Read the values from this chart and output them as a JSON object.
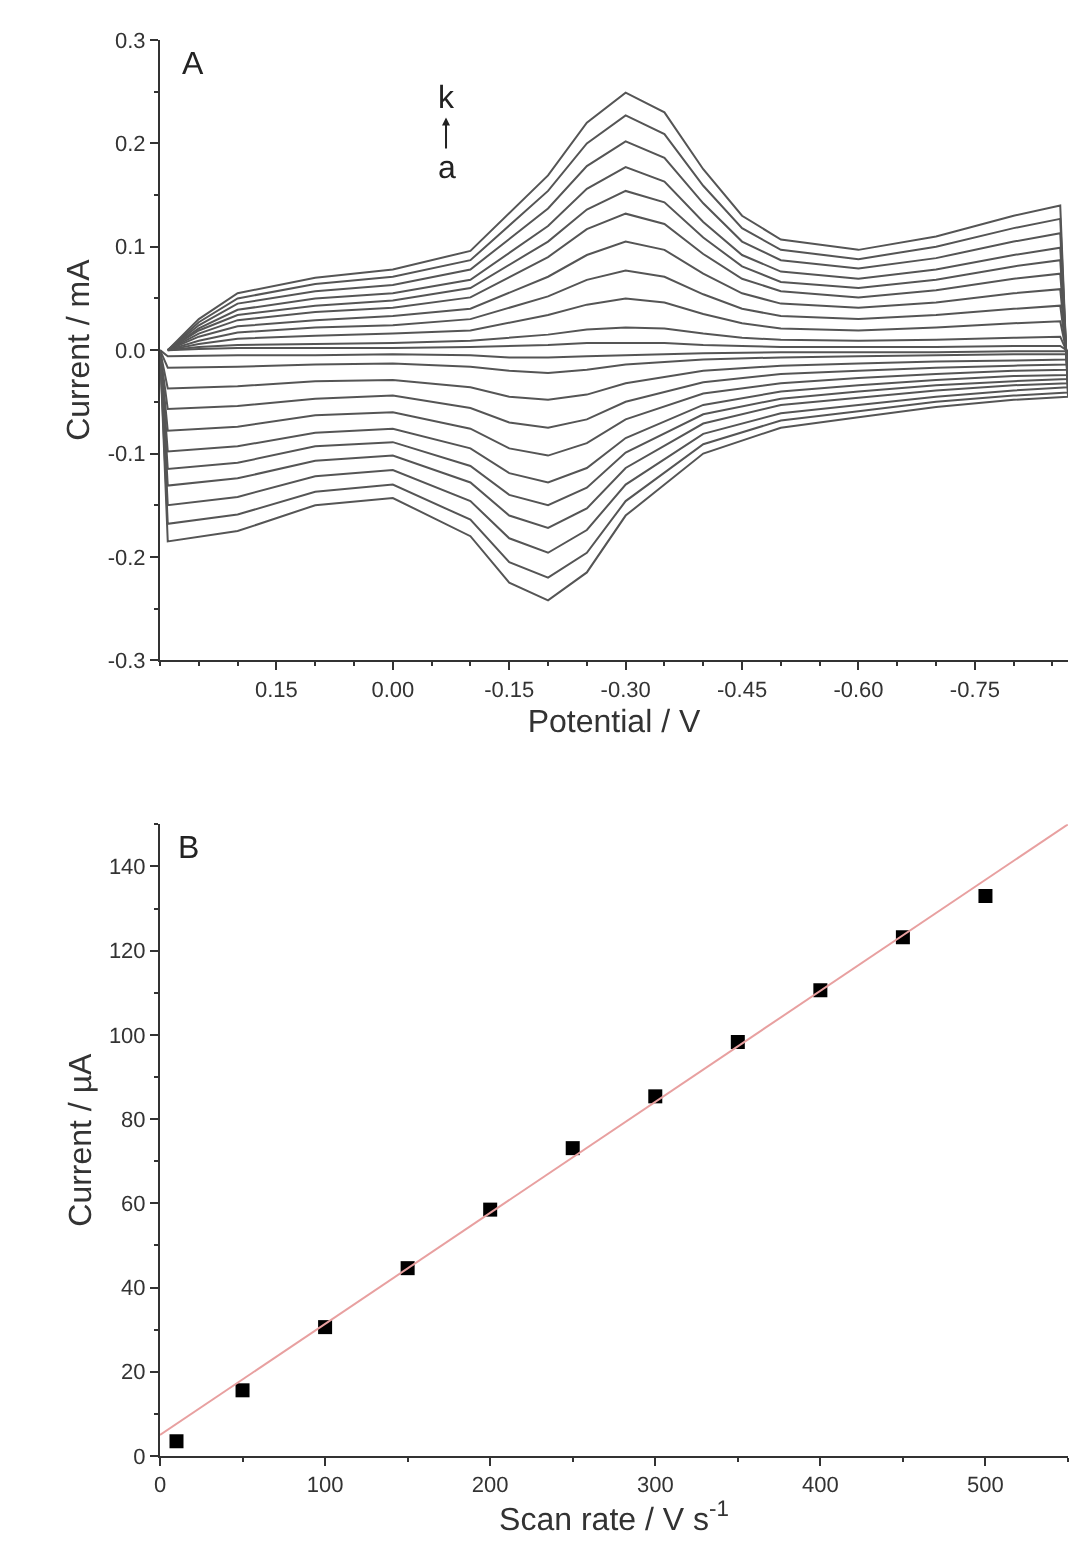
{
  "chart_data": [
    {
      "type": "line",
      "xlabel": "Potential / V",
      "ylabel": "Current / mA",
      "annotations": [
        "A",
        "k",
        "a"
      ],
      "x": [
        0.29,
        0.25,
        0.2,
        0.1,
        0.0,
        -0.1,
        -0.2,
        -0.25,
        -0.3,
        -0.35,
        -0.4,
        -0.45,
        -0.5,
        -0.6,
        -0.7,
        -0.8,
        -0.86,
        -0.87,
        -0.8,
        -0.7,
        -0.6,
        -0.5,
        -0.4,
        -0.3,
        -0.25,
        -0.2,
        -0.15,
        -0.1,
        0.0,
        0.1,
        0.2,
        0.29,
        0.3
      ],
      "series": [
        {
          "color": "#555555",
          "values": [
            0.0,
            0.001,
            0.002,
            0.002,
            0.002,
            0.003,
            0.005,
            0.007,
            0.007,
            0.007,
            0.005,
            0.004,
            0.003,
            0.003,
            0.003,
            0.004,
            0.004,
            -0.001,
            -0.001,
            -0.002,
            -0.002,
            -0.002,
            -0.003,
            -0.005,
            -0.006,
            -0.007,
            -0.007,
            -0.005,
            -0.004,
            -0.005,
            -0.005,
            -0.006,
            0.0
          ]
        },
        {
          "color": "#555555",
          "values": [
            0.0,
            0.003,
            0.005,
            0.006,
            0.007,
            0.009,
            0.015,
            0.02,
            0.022,
            0.021,
            0.016,
            0.012,
            0.01,
            0.009,
            0.01,
            0.012,
            0.013,
            -0.004,
            -0.004,
            -0.005,
            -0.006,
            -0.007,
            -0.009,
            -0.014,
            -0.019,
            -0.022,
            -0.02,
            -0.016,
            -0.013,
            -0.014,
            -0.016,
            -0.017,
            0.0
          ]
        },
        {
          "color": "#555555",
          "values": [
            0.0,
            0.006,
            0.011,
            0.014,
            0.016,
            0.019,
            0.034,
            0.044,
            0.05,
            0.046,
            0.035,
            0.026,
            0.021,
            0.019,
            0.022,
            0.026,
            0.028,
            -0.009,
            -0.01,
            -0.011,
            -0.013,
            -0.015,
            -0.02,
            -0.032,
            -0.043,
            -0.048,
            -0.045,
            -0.036,
            -0.029,
            -0.03,
            -0.035,
            -0.037,
            0.0
          ]
        },
        {
          "color": "#555555",
          "values": [
            0.0,
            0.009,
            0.017,
            0.022,
            0.024,
            0.03,
            0.052,
            0.068,
            0.077,
            0.071,
            0.054,
            0.04,
            0.033,
            0.03,
            0.034,
            0.04,
            0.043,
            -0.014,
            -0.015,
            -0.017,
            -0.02,
            -0.023,
            -0.031,
            -0.05,
            -0.067,
            -0.075,
            -0.07,
            -0.056,
            -0.044,
            -0.047,
            -0.054,
            -0.057,
            0.0
          ]
        },
        {
          "color": "#555555",
          "values": [
            0.0,
            0.013,
            0.023,
            0.029,
            0.033,
            0.04,
            0.071,
            0.092,
            0.105,
            0.097,
            0.074,
            0.055,
            0.045,
            0.041,
            0.046,
            0.055,
            0.059,
            -0.019,
            -0.02,
            -0.023,
            -0.027,
            -0.032,
            -0.042,
            -0.067,
            -0.09,
            -0.102,
            -0.095,
            -0.076,
            -0.06,
            -0.063,
            -0.074,
            -0.078,
            0.0
          ]
        },
        {
          "color": "#555555",
          "values": [
            0.0,
            0.016,
            0.029,
            0.037,
            0.041,
            0.051,
            0.09,
            0.117,
            0.132,
            0.122,
            0.093,
            0.069,
            0.057,
            0.051,
            0.058,
            0.069,
            0.074,
            -0.024,
            -0.025,
            -0.029,
            -0.034,
            -0.04,
            -0.053,
            -0.085,
            -0.114,
            -0.128,
            -0.119,
            -0.095,
            -0.076,
            -0.08,
            -0.093,
            -0.098,
            0.0
          ]
        },
        {
          "color": "#555555",
          "values": [
            0.0,
            0.019,
            0.034,
            0.043,
            0.048,
            0.06,
            0.105,
            0.136,
            0.154,
            0.143,
            0.109,
            0.081,
            0.066,
            0.06,
            0.068,
            0.081,
            0.087,
            -0.028,
            -0.03,
            -0.034,
            -0.04,
            -0.047,
            -0.062,
            -0.099,
            -0.133,
            -0.15,
            -0.14,
            -0.112,
            -0.089,
            -0.093,
            -0.109,
            -0.115,
            0.0
          ]
        },
        {
          "color": "#555555",
          "values": [
            0.0,
            0.021,
            0.039,
            0.05,
            0.055,
            0.068,
            0.12,
            0.156,
            0.177,
            0.163,
            0.124,
            0.092,
            0.076,
            0.069,
            0.078,
            0.092,
            0.099,
            -0.032,
            -0.034,
            -0.039,
            -0.046,
            -0.053,
            -0.071,
            -0.114,
            -0.153,
            -0.172,
            -0.16,
            -0.128,
            -0.102,
            -0.107,
            -0.124,
            -0.131,
            0.0
          ]
        },
        {
          "color": "#555555",
          "values": [
            0.0,
            0.024,
            0.045,
            0.057,
            0.063,
            0.078,
            0.137,
            0.178,
            0.202,
            0.186,
            0.142,
            0.105,
            0.087,
            0.079,
            0.089,
            0.105,
            0.113,
            -0.036,
            -0.039,
            -0.045,
            -0.053,
            -0.061,
            -0.081,
            -0.13,
            -0.174,
            -0.196,
            -0.182,
            -0.146,
            -0.116,
            -0.122,
            -0.142,
            -0.15,
            0.0
          ]
        },
        {
          "color": "#555555",
          "values": [
            0.0,
            0.027,
            0.05,
            0.064,
            0.071,
            0.087,
            0.154,
            0.2,
            0.227,
            0.209,
            0.159,
            0.118,
            0.097,
            0.088,
            0.1,
            0.118,
            0.127,
            -0.041,
            -0.044,
            -0.05,
            -0.059,
            -0.068,
            -0.091,
            -0.146,
            -0.196,
            -0.22,
            -0.205,
            -0.164,
            -0.13,
            -0.137,
            -0.159,
            -0.168,
            0.0
          ]
        },
        {
          "color": "#555555",
          "values": [
            0.0,
            0.03,
            0.055,
            0.07,
            0.078,
            0.096,
            0.169,
            0.22,
            0.249,
            0.23,
            0.175,
            0.13,
            0.107,
            0.097,
            0.11,
            0.13,
            0.14,
            -0.045,
            -0.048,
            -0.055,
            -0.065,
            -0.075,
            -0.1,
            -0.16,
            -0.215,
            -0.242,
            -0.225,
            -0.18,
            -0.143,
            -0.15,
            -0.175,
            -0.185,
            0.0
          ]
        }
      ],
      "xlim": [
        0.3,
        -0.87
      ],
      "xticks": [
        {
          "value": 0.15,
          "label": "0.15"
        },
        {
          "value": 0.0,
          "label": "0.00"
        },
        {
          "value": -0.15,
          "label": "-0.15"
        },
        {
          "value": -0.3,
          "label": "-0.30"
        },
        {
          "value": -0.45,
          "label": "-0.45"
        },
        {
          "value": -0.6,
          "label": "-0.60"
        },
        {
          "value": -0.75,
          "label": "-0.75"
        }
      ],
      "ylim": [
        -0.3,
        0.3
      ],
      "yticks": [
        {
          "value": -0.3,
          "label": "-0.3"
        },
        {
          "value": -0.2,
          "label": "-0.2"
        },
        {
          "value": -0.1,
          "label": "-0.1"
        },
        {
          "value": 0.0,
          "label": "0.0"
        },
        0.1,
        0.2,
        0.3
      ],
      "line_style": "solid"
    },
    {
      "type": "scatter",
      "xlabel": "Scan rate / V s$^{-1}$",
      "ylabel": "Current / µA",
      "annotations": [
        "B"
      ],
      "marker": "square",
      "series": [
        {
          "color": "#000000",
          "x": [
            10,
            50,
            100,
            150,
            200,
            250,
            300,
            350,
            400,
            450,
            500
          ],
          "values": [
            3.5,
            15.6,
            30.6,
            44.6,
            58.5,
            73.1,
            85.4,
            98.3,
            110.6,
            123.2,
            133.0
          ]
        },
        {
          "type": "line",
          "marker": "none",
          "color": "#e8a0a0",
          "x": [
            0,
            550
          ],
          "values": [
            5,
            150
          ]
        }
      ],
      "xlim": [
        0,
        550
      ],
      "xticks": [
        0,
        100,
        200,
        300,
        400,
        500
      ],
      "ylim": [
        0,
        150
      ],
      "yticks": [
        0,
        20,
        40,
        60,
        80,
        100,
        120,
        140
      ]
    }
  ]
}
